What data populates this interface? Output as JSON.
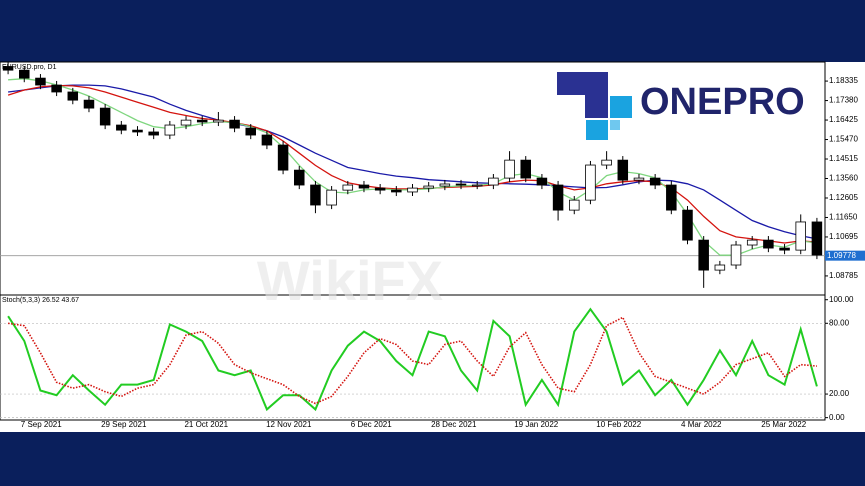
{
  "logo": "ONEPRO",
  "watermark": "WikiFX",
  "chart_data": [
    {
      "type": "candlestick",
      "title": "EURUSD.pro, D1",
      "open": [
        1.1905,
        1.1887,
        1.1848,
        1.1814,
        1.178,
        1.174,
        1.1701,
        1.1618,
        1.1593,
        1.1584,
        1.1569,
        1.1618,
        1.1642,
        1.1633,
        1.1642,
        1.1603,
        1.1569,
        1.152,
        1.1397,
        1.1324,
        1.1226,
        1.1299,
        1.1324,
        1.1309,
        1.1299,
        1.129,
        1.1309,
        1.1319,
        1.1329,
        1.1324,
        1.1324,
        1.1358,
        1.1446,
        1.1358,
        1.1324,
        1.1201,
        1.125,
        1.1422,
        1.1446,
        1.1348,
        1.1358,
        1.1324,
        1.1201,
        1.1054,
        1.0907,
        1.0932,
        1.103,
        1.1054,
        1.1015,
        1.1005,
        1.1143
      ],
      "high": [
        1.1925,
        1.1907,
        1.1868,
        1.1834,
        1.18,
        1.176,
        1.1721,
        1.1638,
        1.1613,
        1.1604,
        1.1638,
        1.1662,
        1.1662,
        1.1682,
        1.1662,
        1.1623,
        1.1589,
        1.154,
        1.1417,
        1.1344,
        1.1319,
        1.1344,
        1.1344,
        1.1329,
        1.1319,
        1.1329,
        1.1339,
        1.1349,
        1.1349,
        1.1344,
        1.1378,
        1.149,
        1.1466,
        1.1378,
        1.1344,
        1.127,
        1.1442,
        1.149,
        1.1466,
        1.1378,
        1.1378,
        1.1344,
        1.1221,
        1.1074,
        1.0952,
        1.105,
        1.1074,
        1.1074,
        1.1035,
        1.118,
        1.1163
      ],
      "low": [
        1.1867,
        1.1828,
        1.1794,
        1.176,
        1.172,
        1.1681,
        1.1598,
        1.1573,
        1.1564,
        1.1549,
        1.1549,
        1.1598,
        1.1613,
        1.1613,
        1.1583,
        1.1549,
        1.15,
        1.1377,
        1.1304,
        1.1186,
        1.1206,
        1.1279,
        1.1289,
        1.1279,
        1.127,
        1.127,
        1.1289,
        1.1299,
        1.1304,
        1.1304,
        1.1304,
        1.1338,
        1.1338,
        1.1304,
        1.115,
        1.1181,
        1.123,
        1.1402,
        1.1328,
        1.1328,
        1.1304,
        1.1181,
        1.1034,
        1.082,
        1.0887,
        1.0912,
        1.101,
        1.0995,
        1.0985,
        1.0985,
        1.0961
      ],
      "close": [
        1.1887,
        1.1848,
        1.1814,
        1.178,
        1.174,
        1.1701,
        1.1618,
        1.1593,
        1.1584,
        1.1569,
        1.1618,
        1.1642,
        1.1633,
        1.1642,
        1.1603,
        1.1569,
        1.152,
        1.1397,
        1.1324,
        1.1226,
        1.1299,
        1.1324,
        1.1309,
        1.1299,
        1.129,
        1.1309,
        1.1319,
        1.1329,
        1.1324,
        1.1324,
        1.1358,
        1.1446,
        1.1358,
        1.1324,
        1.1201,
        1.125,
        1.1422,
        1.1446,
        1.1348,
        1.1358,
        1.1324,
        1.1201,
        1.1054,
        1.0907,
        1.0932,
        1.103,
        1.1054,
        1.1015,
        1.1005,
        1.1143,
        1.0981
      ],
      "series": [
        {
          "color": "#1a1aa8",
          "values": [
            1.178,
            1.179,
            1.18,
            1.181,
            1.1814,
            1.1814,
            1.181,
            1.1795,
            1.1775,
            1.1755,
            1.172,
            1.169,
            1.1665,
            1.1642,
            1.1625,
            1.161,
            1.159,
            1.156,
            1.152,
            1.148,
            1.1445,
            1.141,
            1.1395,
            1.138,
            1.1368,
            1.136,
            1.135,
            1.1345,
            1.134,
            1.1335,
            1.1332,
            1.133,
            1.1328,
            1.1325,
            1.132,
            1.1315,
            1.131,
            1.1312,
            1.1325,
            1.134,
            1.1348,
            1.1345,
            1.133,
            1.13,
            1.125,
            1.12,
            1.115,
            1.112,
            1.1095,
            1.1075,
            1.106
          ]
        },
        {
          "color": "#d4140f",
          "values": [
            1.1765,
            1.179,
            1.1805,
            1.1812,
            1.181,
            1.18,
            1.178,
            1.1755,
            1.173,
            1.1705,
            1.168,
            1.1665,
            1.165,
            1.1642,
            1.163,
            1.1615,
            1.159,
            1.154,
            1.148,
            1.142,
            1.137,
            1.1335,
            1.132,
            1.131,
            1.1305,
            1.1305,
            1.1308,
            1.1312,
            1.1315,
            1.1318,
            1.1325,
            1.134,
            1.1348,
            1.1345,
            1.132,
            1.13,
            1.131,
            1.133,
            1.134,
            1.1345,
            1.134,
            1.131,
            1.125,
            1.117,
            1.11,
            1.107,
            1.106,
            1.105,
            1.104,
            1.105,
            1.1045
          ]
        },
        {
          "color": "#7fd67f",
          "values": [
            1.184,
            1.1845,
            1.1835,
            1.1815,
            1.179,
            1.176,
            1.172,
            1.168,
            1.164,
            1.161,
            1.16,
            1.161,
            1.1625,
            1.1635,
            1.163,
            1.161,
            1.158,
            1.151,
            1.142,
            1.134,
            1.129,
            1.1285,
            1.13,
            1.1305,
            1.13,
            1.13,
            1.1305,
            1.1315,
            1.132,
            1.1322,
            1.133,
            1.137,
            1.138,
            1.136,
            1.129,
            1.125,
            1.13,
            1.137,
            1.139,
            1.138,
            1.136,
            1.129,
            1.118,
            1.105,
            1.098,
            1.098,
            1.101,
            1.103,
            1.102,
            1.105,
            1.104
          ]
        }
      ],
      "ylim": [
        1.0785,
        1.1927
      ],
      "yticks": [
        1.18335,
        {
          "value": 1.1738,
          "label": "1.17380"
        },
        {
          "value": 1.16425,
          "label": "1.16425"
        },
        {
          "value": 1.1547,
          "label": "1.15470"
        },
        {
          "value": 1.14515,
          "label": "1.14515"
        },
        {
          "value": 1.1356,
          "label": "1.13560"
        },
        {
          "value": 1.12605,
          "label": "1.12605"
        },
        {
          "value": 1.1165,
          "label": "1.11650"
        },
        {
          "value": 1.10695,
          "label": "1.10695"
        },
        {
          "value": 1.08785,
          "label": "1.08785"
        }
      ],
      "current_price": 1.09778
    },
    {
      "type": "line",
      "title": "Stoch(5,3,3) 26.52 43.67",
      "series": [
        {
          "color": "#22cc22",
          "style": "solid",
          "values": [
            86,
            65,
            23,
            19,
            36,
            23,
            11,
            28,
            28,
            32,
            79,
            73,
            65,
            40,
            36,
            40,
            7,
            19,
            19,
            7,
            40,
            61,
            73,
            65,
            48,
            36,
            73,
            69,
            40,
            23,
            82,
            69,
            11,
            32,
            11,
            73,
            92,
            73,
            28,
            40,
            19,
            32,
            11,
            32,
            57,
            36,
            65,
            36,
            28,
            75,
            26.52
          ]
        },
        {
          "color": "#d4140f",
          "style": "dotted",
          "values": [
            80,
            78,
            55,
            30,
            25,
            28,
            22,
            18,
            25,
            28,
            45,
            70,
            73,
            63,
            45,
            38,
            33,
            28,
            18,
            12,
            18,
            35,
            55,
            67,
            62,
            48,
            45,
            62,
            65,
            48,
            35,
            60,
            72,
            45,
            25,
            22,
            45,
            78,
            85,
            55,
            35,
            30,
            25,
            20,
            30,
            45,
            50,
            55,
            35,
            45,
            43.67
          ]
        }
      ],
      "ylim": [
        -2,
        104
      ],
      "yticks": [
        {
          "value": 100,
          "label": "100.00"
        },
        {
          "value": 80,
          "label": "80.00"
        },
        {
          "value": 20,
          "label": "20.00"
        },
        {
          "value": 0,
          "label": "0.00"
        }
      ],
      "xtick_labels": [
        "7 Sep 2021",
        "29 Sep 2021",
        "21 Oct 2021",
        "12 Nov 2021",
        "6 Dec 2021",
        "28 Dec 2021",
        "19 Jan 2022",
        "10 Feb 2022",
        "4 Mar 2022",
        "25 Mar 2022"
      ]
    }
  ]
}
